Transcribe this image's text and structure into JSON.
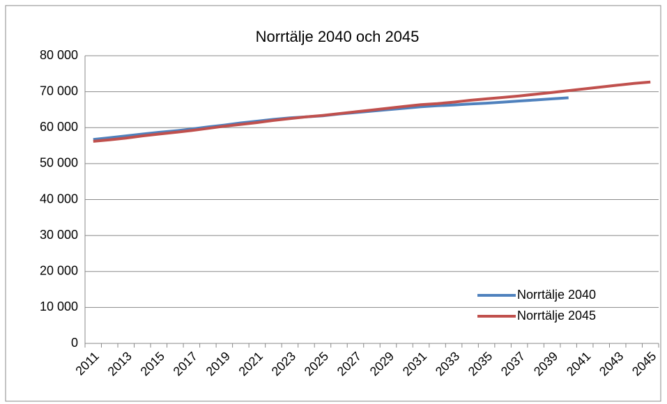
{
  "chart_data": {
    "type": "line",
    "title": "Norrtälje 2040 och 2045",
    "categories": [
      "2011",
      null,
      "2013",
      null,
      "2015",
      null,
      "2017",
      null,
      "2019",
      null,
      "2021",
      null,
      "2023",
      null,
      "2025",
      null,
      "2027",
      null,
      "2029",
      null,
      "2031",
      null,
      "2033",
      null,
      "2035",
      null,
      "2037",
      null,
      "2039",
      null,
      "2041",
      null,
      "2043",
      null,
      "2045"
    ],
    "series": [
      {
        "name": "Norrtälje 2040",
        "color": "#4f81bd",
        "values": [
          56700,
          57200,
          57700,
          58200,
          58700,
          59100,
          59600,
          60200,
          60700,
          61300,
          61800,
          62300,
          62700,
          63000,
          63300,
          63800,
          64200,
          64600,
          65000,
          65400,
          65800,
          66100,
          66300,
          66600,
          66800,
          67100,
          67400,
          67700,
          68000,
          68300,
          null,
          null,
          null,
          null,
          null
        ]
      },
      {
        "name": "Norrtälje 2045",
        "color": "#c0504d",
        "values": [
          56200,
          56600,
          57100,
          57700,
          58200,
          58700,
          59200,
          59800,
          60400,
          60900,
          61400,
          62000,
          62500,
          63000,
          63400,
          63900,
          64400,
          64900,
          65400,
          65900,
          66400,
          66700,
          67100,
          67600,
          68000,
          68400,
          68800,
          69300,
          69800,
          70300,
          70800,
          71300,
          71800,
          72300,
          72700
        ]
      }
    ],
    "ylim": [
      0,
      80000
    ],
    "yticks": [
      0,
      {
        "value": 10000,
        "label": "10 000"
      },
      {
        "value": 20000,
        "label": "20 000"
      },
      {
        "value": 30000,
        "label": "30 000"
      },
      {
        "value": 40000,
        "label": "40 000"
      },
      {
        "value": 50000,
        "label": "50 000"
      },
      {
        "value": 60000,
        "label": "60 000"
      },
      {
        "value": 70000,
        "label": "70 000"
      },
      {
        "value": 80000,
        "label": "80 000"
      }
    ],
    "grid": true,
    "legend": "lower right"
  }
}
